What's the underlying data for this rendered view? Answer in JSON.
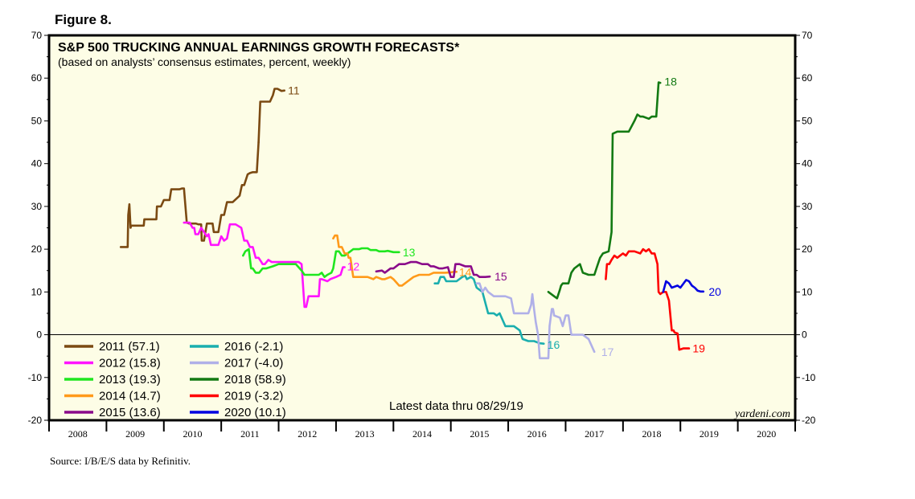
{
  "figure_label": "Figure 8.",
  "source": "Source: I/B/E/S data by Refinitiv.",
  "colors": {
    "panel_bg": "#fdfde6",
    "2011": "#7b4a12",
    "2012": "#ff14ff",
    "2013": "#1fe61f",
    "2014": "#ff9a1a",
    "2015": "#8a0a8a",
    "2016": "#1aaeae",
    "2017": "#b0b0e8",
    "2018": "#137a13",
    "2019": "#ff0000",
    "2020": "#0000e0"
  },
  "chart_data": {
    "type": "line",
    "title": "S&P 500 TRUCKING ANNUAL EARNINGS GROWTH FORECASTS*",
    "subtitle": "(based on analysts’ consensus estimates, percent, weekly)",
    "note": "Latest data thru 08/29/19",
    "watermark": "yardeni.com",
    "xlabel": "",
    "ylabel": "",
    "xlim": [
      2008,
      2021
    ],
    "ylim": [
      -20,
      70
    ],
    "yticks": [
      -20,
      -10,
      0,
      10,
      20,
      30,
      40,
      50,
      60,
      70
    ],
    "ytick_labels": [
      "-20",
      "-10",
      "0",
      "10",
      "20",
      "30",
      "40",
      "50",
      "60",
      "70"
    ],
    "year_labels": [
      "2008",
      "2009",
      "2010",
      "2011",
      "2012",
      "2013",
      "2014",
      "2015",
      "2016",
      "2017",
      "2018",
      "2019",
      "2020"
    ],
    "zero_line": true,
    "legend": [
      {
        "key": "2011",
        "label": "2011 (57.1)"
      },
      {
        "key": "2012",
        "label": "2012 (15.8)"
      },
      {
        "key": "2013",
        "label": "2013 (19.3)"
      },
      {
        "key": "2014",
        "label": "2014 (14.7)"
      },
      {
        "key": "2015",
        "label": "2015 (13.6)"
      },
      {
        "key": "2016",
        "label": "2016 (-2.1)"
      },
      {
        "key": "2017",
        "label": "2017 (-4.0)"
      },
      {
        "key": "2018",
        "label": "2018 (58.9)"
      },
      {
        "key": "2019",
        "label": "2019 (-3.2)"
      },
      {
        "key": "2020",
        "label": "2020 (10.1)"
      }
    ],
    "series": [
      {
        "name": "2011",
        "end_label": "11",
        "x": [
          2009.25,
          2009.37,
          2009.38,
          2009.4,
          2009.42,
          2009.43,
          2009.46,
          2009.55,
          2009.65,
          2009.66,
          2009.7,
          2009.8,
          2009.87,
          2009.88,
          2009.95,
          2010.0,
          2010.1,
          2010.13,
          2010.14,
          2010.2,
          2010.27,
          2010.32,
          2010.35,
          2010.4,
          2010.44,
          2010.56,
          2010.6,
          2010.65,
          2010.66,
          2010.7,
          2010.75,
          2010.78,
          2010.85,
          2010.87,
          2010.95,
          2011.0,
          2011.02,
          2011.05,
          2011.1,
          2011.12,
          2011.18,
          2011.2,
          2011.32,
          2011.36,
          2011.4,
          2011.46,
          2011.5,
          2011.55,
          2011.62,
          2011.65
        ],
        "y": [
          20.5,
          20.5,
          28,
          30.5,
          25,
          25.5,
          25.5,
          25.5,
          25.5,
          27,
          27,
          27,
          27,
          30,
          30,
          31.5,
          31.5,
          34,
          34,
          34,
          34,
          34.2,
          34.2,
          26.2,
          26,
          26,
          25.8,
          25.8,
          22,
          22,
          26,
          26,
          26,
          24,
          24,
          28,
          28,
          28,
          31,
          31,
          31,
          31,
          32.5,
          35,
          35,
          37.5,
          37.8,
          38,
          38,
          45
        ]
      },
      {
        "name": "2011b",
        "x": [
          2011.65,
          2011.68,
          2011.7,
          2011.85,
          2011.9,
          2011.93,
          2011.98,
          2012.05,
          2012.1
        ],
        "y": [
          45,
          54.5,
          54.5,
          54.5,
          56,
          57.5,
          57.5,
          57,
          57.1
        ]
      },
      {
        "name": "2012",
        "end_label": "12",
        "x": [
          2010.35,
          2010.45,
          2010.5,
          2010.53,
          2010.55,
          2010.6,
          2010.65,
          2010.7,
          2010.75,
          2010.78,
          2010.82,
          2010.85,
          2010.9,
          2010.95,
          2011.0,
          2011.05,
          2011.1,
          2011.15,
          2011.2,
          2011.25,
          2011.35,
          2011.4,
          2011.45,
          2011.5,
          2011.55,
          2011.6,
          2011.65,
          2011.7,
          2011.72,
          2011.76,
          2011.82,
          2011.88,
          2011.92,
          2011.96,
          2012.05,
          2012.15,
          2012.25,
          2012.35,
          2012.4,
          2012.45,
          2012.48,
          2012.52,
          2012.6,
          2012.7,
          2012.72,
          2012.75,
          2012.85,
          2012.9,
          2013.0,
          2013.08,
          2013.12,
          2013.15
        ],
        "y": [
          26.2,
          26.2,
          25,
          25,
          23.5,
          23.5,
          25,
          24,
          23,
          23.5,
          21,
          21,
          21,
          21,
          23,
          22,
          22.5,
          25.8,
          25.8,
          25.8,
          25,
          22,
          22,
          20.5,
          20.5,
          18,
          18,
          17,
          16.5,
          16.5,
          17.5,
          17,
          17,
          17,
          17,
          17,
          17,
          17,
          16.5,
          6.5,
          6.5,
          9,
          9,
          9,
          13,
          13,
          12.5,
          13,
          13.5,
          14,
          15.8,
          15.8
        ]
      },
      {
        "name": "2013",
        "end_label": "13",
        "x": [
          2011.38,
          2011.42,
          2011.48,
          2011.52,
          2011.55,
          2011.6,
          2011.66,
          2011.72,
          2011.78,
          2011.9,
          2012.0,
          2012.1,
          2012.2,
          2012.3,
          2012.4,
          2012.45,
          2012.6,
          2012.7,
          2012.75,
          2012.8,
          2012.85,
          2012.92,
          2012.95,
          2013.0,
          2013.05,
          2013.1,
          2013.15,
          2013.25,
          2013.3,
          2013.4,
          2013.45,
          2013.55,
          2013.6,
          2013.7,
          2013.75,
          2013.85,
          2013.9,
          2014.0,
          2014.1
        ],
        "y": [
          18.5,
          19.5,
          20,
          15.5,
          15.5,
          14.5,
          14.5,
          15.5,
          15.5,
          16,
          16.5,
          16.5,
          16.5,
          16.5,
          15,
          14,
          14,
          14,
          14.5,
          13.5,
          14,
          14.5,
          15.5,
          19.5,
          19.5,
          18.5,
          18.5,
          19.5,
          20,
          20,
          20.2,
          20.2,
          19.8,
          19.8,
          19.5,
          19.5,
          19.6,
          19.3,
          19.3
        ]
      },
      {
        "name": "2014",
        "end_label": "14",
        "x": [
          2012.95,
          2012.98,
          2013.02,
          2013.05,
          2013.1,
          2013.15,
          2013.2,
          2013.22,
          2013.25,
          2013.3,
          2013.4,
          2013.55,
          2013.65,
          2013.7,
          2013.8,
          2013.85,
          2013.95,
          2014.0,
          2014.1,
          2014.15,
          2014.25,
          2014.35,
          2014.45,
          2014.55,
          2014.62,
          2014.7,
          2014.76,
          2014.8,
          2014.9,
          2015.0,
          2015.05,
          2015.1
        ],
        "y": [
          22.5,
          23.2,
          23.2,
          20.5,
          20.5,
          19,
          19,
          18,
          18,
          13.5,
          13.5,
          13.5,
          13,
          13.5,
          13,
          13,
          13.5,
          13,
          11.5,
          11.5,
          12.5,
          13.5,
          14,
          14,
          14,
          14.5,
          14.5,
          14.5,
          14.5,
          14.6,
          14.7,
          14.7
        ]
      },
      {
        "name": "2015",
        "end_label": "15",
        "x": [
          2013.7,
          2013.8,
          2013.85,
          2013.95,
          2014.0,
          2014.1,
          2014.2,
          2014.3,
          2014.4,
          2014.5,
          2014.6,
          2014.65,
          2014.7,
          2014.8,
          2014.85,
          2014.95,
          2015.0,
          2015.05,
          2015.08,
          2015.15,
          2015.25,
          2015.35,
          2015.4,
          2015.45,
          2015.5,
          2015.6,
          2015.68
        ],
        "y": [
          14.8,
          15,
          14.5,
          15.5,
          15.5,
          16.5,
          16.5,
          17,
          17,
          16.5,
          16.5,
          16,
          16,
          15.5,
          15.5,
          15.8,
          13.5,
          13.5,
          16.5,
          16.5,
          16,
          16,
          14,
          14,
          13.5,
          13.5,
          13.6
        ]
      },
      {
        "name": "2016",
        "end_label": "16",
        "x": [
          2014.72,
          2014.78,
          2014.82,
          2014.88,
          2014.92,
          2015.0,
          2015.1,
          2015.2,
          2015.25,
          2015.28,
          2015.35,
          2015.4,
          2015.45,
          2015.55,
          2015.65,
          2015.75,
          2015.8,
          2015.85,
          2015.95,
          2016.1,
          2016.2,
          2016.25,
          2016.35,
          2016.45,
          2016.55,
          2016.62
        ],
        "y": [
          12,
          12,
          13.5,
          13.5,
          12.5,
          12.5,
          12.5,
          13.5,
          13.8,
          13,
          13.5,
          13,
          11,
          10,
          5,
          5,
          4.5,
          5,
          2,
          2,
          1,
          -1,
          -1.5,
          -1.5,
          -2,
          -2.1
        ]
      },
      {
        "name": "2017",
        "end_label": "17",
        "x": [
          2015.45,
          2015.5,
          2015.55,
          2015.6,
          2015.65,
          2015.75,
          2015.8,
          2015.95,
          2016.05,
          2016.1,
          2016.15,
          2016.25,
          2016.35,
          2016.4,
          2016.42,
          2016.45,
          2016.48,
          2016.52,
          2016.55,
          2016.6,
          2016.7,
          2016.72,
          2016.76,
          2016.78,
          2016.8,
          2016.9,
          2016.95,
          2017.0,
          2017.05,
          2017.1,
          2017.2,
          2017.3,
          2017.4,
          2017.5
        ],
        "y": [
          12,
          12,
          10,
          11,
          10,
          9,
          9,
          9,
          8.5,
          5,
          5,
          5,
          5,
          7,
          9.5,
          6,
          3,
          0,
          -5.5,
          -5.5,
          -5.5,
          2,
          6,
          6,
          4.5,
          4,
          2,
          4.5,
          4.5,
          0,
          0,
          0,
          -1,
          -4
        ]
      },
      {
        "name": "2018",
        "end_label": "18",
        "x": [
          2016.7,
          2016.8,
          2016.85,
          2016.9,
          2016.92,
          2016.95,
          2017.05,
          2017.1,
          2017.15,
          2017.25,
          2017.3,
          2017.4,
          2017.5,
          2017.55,
          2017.6,
          2017.65,
          2017.75,
          2017.8,
          2017.82,
          2017.9,
          2018.0,
          2018.1,
          2018.2,
          2018.25,
          2018.3,
          2018.35,
          2018.45,
          2018.5,
          2018.58,
          2018.62,
          2018.65
        ],
        "y": [
          10,
          9,
          8.5,
          10.5,
          11.5,
          12,
          12,
          14.5,
          15.5,
          16.5,
          14.5,
          14,
          14,
          16,
          18,
          19,
          19.5,
          24,
          47,
          47.5,
          47.5,
          47.5,
          50,
          51.5,
          51,
          51,
          50.5,
          51,
          51,
          59,
          58.9
        ]
      },
      {
        "name": "2019",
        "end_label": "19",
        "x": [
          2017.7,
          2017.72,
          2017.76,
          2017.8,
          2017.85,
          2017.9,
          2018.0,
          2018.05,
          2018.1,
          2018.2,
          2018.3,
          2018.35,
          2018.4,
          2018.45,
          2018.5,
          2018.55,
          2018.6,
          2018.62,
          2018.65,
          2018.7,
          2018.75,
          2018.8,
          2018.85,
          2018.88,
          2018.9,
          2018.95,
          2018.98,
          2019.05,
          2019.1,
          2019.15
        ],
        "y": [
          13,
          16.5,
          16.5,
          17.5,
          18.5,
          18,
          19,
          18.5,
          19.5,
          19.5,
          19,
          20,
          19.5,
          20,
          19,
          19,
          16.5,
          10,
          9.5,
          10,
          10,
          8,
          1,
          1,
          0.5,
          0.3,
          -3.5,
          -3.2,
          -3.2,
          -3.2
        ]
      },
      {
        "name": "2020",
        "end_label": "20",
        "x": [
          2018.7,
          2018.75,
          2018.8,
          2018.85,
          2018.95,
          2019.0,
          2019.1,
          2019.15,
          2019.2,
          2019.25,
          2019.3,
          2019.35,
          2019.4
        ],
        "y": [
          10,
          12.5,
          12,
          11,
          11.5,
          11,
          12.8,
          12.5,
          11.5,
          11,
          10.3,
          10.1,
          10.1
        ]
      }
    ],
    "end_labels": [
      {
        "text": "11",
        "x": 2012.12,
        "y": 57.1,
        "color_key": "2011"
      },
      {
        "text": "12",
        "x": 2013.15,
        "y": 16.0,
        "color_key": "2012"
      },
      {
        "text": "13",
        "x": 2014.12,
        "y": 19.3,
        "color_key": "2013"
      },
      {
        "text": "14",
        "x": 2015.1,
        "y": 14.7,
        "color_key": "2014"
      },
      {
        "text": "15",
        "x": 2015.72,
        "y": 13.6,
        "color_key": "2015"
      },
      {
        "text": "16",
        "x": 2016.64,
        "y": -2.3,
        "color_key": "2016"
      },
      {
        "text": "17",
        "x": 2017.58,
        "y": -4.0,
        "color_key": "2017"
      },
      {
        "text": "18",
        "x": 2018.68,
        "y": 59.2,
        "color_key": "2018"
      },
      {
        "text": "19",
        "x": 2019.17,
        "y": -3.2,
        "color_key": "2019"
      },
      {
        "text": "20",
        "x": 2019.45,
        "y": 10.1,
        "color_key": "2020"
      }
    ]
  }
}
